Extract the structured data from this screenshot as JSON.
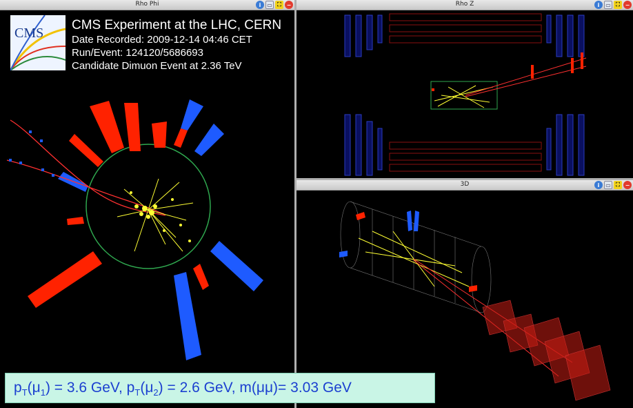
{
  "panels": {
    "rhophi": {
      "title": "Rho Phi"
    },
    "rhoz": {
      "title": "Rho Z"
    },
    "threed": {
      "title": "3D"
    }
  },
  "window_buttons": {
    "info": "i",
    "undock": "▭",
    "maximize": "⛶",
    "close": "−"
  },
  "logo": {
    "text": "CMS"
  },
  "header": {
    "line1": "CMS Experiment at the LHC, CERN",
    "line2": "Date Recorded: 2009-12-14 04:46 CET",
    "line3": "Run/Event: 124120/5686693",
    "line4": "Candidate Dimuon Event at 2.36 TeV"
  },
  "formula": {
    "p1": "p",
    "p1_sub": "T",
    "mu1_open": "(μ",
    "mu1_sub": "1",
    "eq1": ") = 3.6 GeV,  p",
    "p2_sub": "T",
    "mu2_open": "(μ",
    "mu2_sub": "2",
    "eq2": ") = 2.6 GeV, m(μμ)= 3.03 GeV"
  },
  "colors": {
    "red_tower": "#ff2200",
    "blue_tower": "#1e5bff",
    "track": "#ffff33",
    "circle": "#2fa84f",
    "detector_blue": "#1a2b8f",
    "detector_red": "#8a1010",
    "formula_bg": "#c9f5e6",
    "formula_text": "#1b3fd0"
  }
}
